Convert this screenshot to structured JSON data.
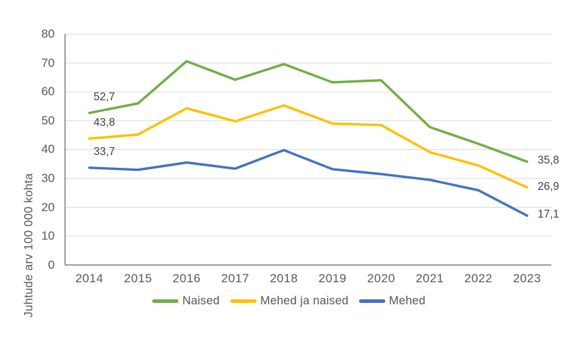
{
  "chart_data": {
    "type": "line",
    "title": "",
    "xlabel": "",
    "ylabel": "Juhtude arv 100 000 kohta",
    "categories": [
      "2014",
      "2015",
      "2016",
      "2017",
      "2018",
      "2019",
      "2020",
      "2021",
      "2022",
      "2023"
    ],
    "series": [
      {
        "name": "Naised",
        "color": "#70AD47",
        "values": [
          52.7,
          56.0,
          70.6,
          64.2,
          69.6,
          63.3,
          64.0,
          47.8,
          42.0,
          35.8
        ]
      },
      {
        "name": "Mehed ja naised",
        "color": "#FFC000",
        "values": [
          43.8,
          45.2,
          54.3,
          49.8,
          55.3,
          49.0,
          48.5,
          39.1,
          34.5,
          26.9
        ]
      },
      {
        "name": "Mehed",
        "color": "#4472C4",
        "values": [
          33.7,
          33.0,
          35.5,
          33.4,
          39.8,
          33.2,
          31.5,
          29.5,
          25.9,
          17.1
        ]
      }
    ],
    "ylim": [
      0,
      80
    ],
    "yticks": [
      0,
      10,
      20,
      30,
      40,
      50,
      60,
      70,
      80
    ],
    "grid": true,
    "legend_position": "bottom",
    "point_labels": [
      {
        "series": 0,
        "index": 0,
        "text": "52,7"
      },
      {
        "series": 1,
        "index": 0,
        "text": "43,8"
      },
      {
        "series": 2,
        "index": 0,
        "text": "33,7"
      },
      {
        "series": 0,
        "index": 9,
        "text": "35,8"
      },
      {
        "series": 1,
        "index": 9,
        "text": "26,9"
      },
      {
        "series": 2,
        "index": 9,
        "text": "17,1"
      }
    ],
    "colors": {
      "background": "#ffffff",
      "grid": "#d9d9d9",
      "axis": "#737373",
      "tick_text": "#595959",
      "data_label_text": "#414141"
    }
  }
}
